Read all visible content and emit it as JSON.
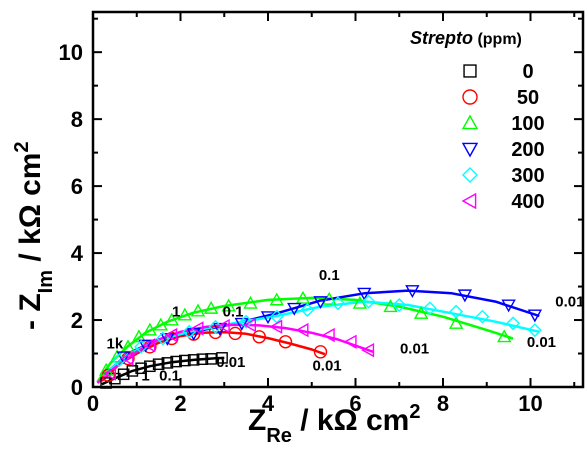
{
  "chart_data": {
    "type": "scatter",
    "xlabel": {
      "main": "Z",
      "sub": "Re",
      "unit": " / kΩ cm",
      "sup": "2"
    },
    "ylabel": {
      "prefix": "- Z",
      "sub": "Im",
      "unit": " / kΩ cm",
      "sup": "2"
    },
    "xlim": [
      0,
      11.2
    ],
    "ylim": [
      0,
      11.2
    ],
    "xticks": [
      "0",
      "2",
      "4",
      "6",
      "8",
      "10"
    ],
    "yticks": [
      "0",
      "2",
      "4",
      "6",
      "8",
      "10"
    ],
    "legend": {
      "title_italic": "Strepto",
      "title_unit": " (ppm)",
      "position": "top-right",
      "entries": [
        "0",
        "50",
        "100",
        "200",
        "300",
        "400"
      ]
    },
    "annotations": [
      {
        "text": "1k",
        "x": 0.5,
        "y": 1.15
      },
      {
        "text": "1",
        "x": 1.9,
        "y": 2.1
      },
      {
        "text": "0.1",
        "x": 3.2,
        "y": 2.1
      },
      {
        "text": "0.1",
        "x": 5.4,
        "y": 3.2
      },
      {
        "text": "0.01",
        "x": 10.9,
        "y": 2.4
      },
      {
        "text": "0.01",
        "x": 10.25,
        "y": 1.2
      },
      {
        "text": "0.01",
        "x": 7.35,
        "y": 1.0
      },
      {
        "text": "0.01",
        "x": 5.35,
        "y": 0.5
      },
      {
        "text": "0.01",
        "x": 3.15,
        "y": 0.6
      },
      {
        "text": "1",
        "x": 1.2,
        "y": 0.2
      },
      {
        "text": "0.1",
        "x": 1.75,
        "y": 0.2
      }
    ],
    "series": [
      {
        "name": "0",
        "marker": "square",
        "color": "#000000",
        "x": [
          0.3,
          0.5,
          0.7,
          0.9,
          1.1,
          1.3,
          1.5,
          1.7,
          1.9,
          2.1,
          2.3,
          2.5,
          2.7,
          2.95
        ],
        "y": [
          0.12,
          0.25,
          0.38,
          0.48,
          0.56,
          0.62,
          0.68,
          0.72,
          0.76,
          0.79,
          0.81,
          0.83,
          0.84,
          0.87
        ],
        "fit_x": [
          0.2,
          0.5,
          0.9,
          1.3,
          1.8,
          2.3,
          2.8,
          3.0
        ],
        "fit_y": [
          0.08,
          0.26,
          0.48,
          0.62,
          0.74,
          0.81,
          0.86,
          0.87
        ]
      },
      {
        "name": "50",
        "marker": "circle",
        "color": "#ff0000",
        "x": [
          0.35,
          0.8,
          1.3,
          1.8,
          2.3,
          2.8,
          3.25,
          3.8,
          4.4,
          5.2
        ],
        "y": [
          0.35,
          0.85,
          1.2,
          1.45,
          1.58,
          1.63,
          1.6,
          1.5,
          1.35,
          1.05
        ],
        "fit_x": [
          0.2,
          0.6,
          1.0,
          1.5,
          2.0,
          2.5,
          3.0,
          3.5,
          4.0,
          4.5,
          5.0,
          5.3
        ],
        "fit_y": [
          0.18,
          0.68,
          1.0,
          1.32,
          1.52,
          1.62,
          1.64,
          1.59,
          1.46,
          1.3,
          1.12,
          0.98
        ]
      },
      {
        "name": "100",
        "marker": "triangle-up",
        "color": "#00ff00",
        "x": [
          0.3,
          0.55,
          0.8,
          1.05,
          1.3,
          1.55,
          1.8,
          2.1,
          2.4,
          2.7,
          3.1,
          3.6,
          4.2,
          4.8,
          5.4,
          6.1,
          6.8,
          7.5,
          8.3,
          9.4
        ],
        "y": [
          0.5,
          0.9,
          1.2,
          1.5,
          1.7,
          1.85,
          2.0,
          2.15,
          2.27,
          2.35,
          2.42,
          2.5,
          2.6,
          2.65,
          2.62,
          2.5,
          2.4,
          2.2,
          1.9,
          1.5
        ],
        "fit_x": [
          0.1,
          0.4,
          0.8,
          1.2,
          1.7,
          2.3,
          3.0,
          4.0,
          5.0,
          6.0,
          7.0,
          8.0,
          9.0,
          9.6
        ],
        "fit_y": [
          0.15,
          0.72,
          1.22,
          1.62,
          1.95,
          2.22,
          2.42,
          2.6,
          2.66,
          2.6,
          2.4,
          2.1,
          1.7,
          1.45
        ]
      },
      {
        "name": "200",
        "marker": "triangle-down",
        "color": "#0000ff",
        "x": [
          0.7,
          1.2,
          1.7,
          2.3,
          2.9,
          3.4,
          4.0,
          4.6,
          5.2,
          6.2,
          7.3,
          8.5,
          9.5,
          10.1
        ],
        "y": [
          0.9,
          1.25,
          1.45,
          1.6,
          1.75,
          1.9,
          2.1,
          2.35,
          2.55,
          2.8,
          2.88,
          2.75,
          2.45,
          2.15
        ],
        "fit_x": [
          0.2,
          0.8,
          1.5,
          2.3,
          3.2,
          4.2,
          5.2,
          6.2,
          7.2,
          8.2,
          9.2,
          10.2
        ],
        "fit_y": [
          0.3,
          1.0,
          1.42,
          1.65,
          1.88,
          2.2,
          2.58,
          2.8,
          2.88,
          2.8,
          2.55,
          2.12
        ]
      },
      {
        "name": "300",
        "marker": "diamond",
        "color": "#00ffff",
        "x": [
          0.6,
          1.1,
          1.6,
          2.2,
          2.8,
          3.5,
          4.2,
          4.9,
          5.6,
          6.3,
          7.0,
          7.7,
          8.3,
          8.9,
          9.6,
          10.1
        ],
        "y": [
          0.8,
          1.2,
          1.45,
          1.65,
          1.8,
          1.95,
          2.1,
          2.3,
          2.5,
          2.55,
          2.45,
          2.35,
          2.25,
          2.1,
          1.9,
          1.7
        ],
        "fit_x": [
          0.2,
          0.8,
          1.5,
          2.3,
          3.2,
          4.2,
          5.2,
          6.2,
          7.2,
          8.2,
          9.2,
          10.2
        ],
        "fit_y": [
          0.3,
          0.98,
          1.4,
          1.68,
          1.9,
          2.12,
          2.4,
          2.55,
          2.45,
          2.2,
          1.95,
          1.65
        ]
      },
      {
        "name": "400",
        "marker": "triangle-left",
        "color": "#ff00ff",
        "x": [
          0.4,
          0.8,
          1.3,
          1.8,
          2.4,
          3.0,
          3.6,
          4.2,
          4.8,
          5.4,
          5.9,
          6.3
        ],
        "y": [
          0.4,
          0.85,
          1.25,
          1.55,
          1.75,
          1.82,
          1.85,
          1.8,
          1.7,
          1.55,
          1.35,
          1.1
        ],
        "fit_x": [
          0.1,
          0.5,
          1.0,
          1.5,
          2.0,
          2.6,
          3.2,
          3.8,
          4.4,
          5.0,
          5.6,
          6.4
        ],
        "fit_y": [
          0.12,
          0.58,
          1.05,
          1.42,
          1.65,
          1.8,
          1.86,
          1.84,
          1.76,
          1.62,
          1.42,
          1.05
        ]
      }
    ]
  }
}
